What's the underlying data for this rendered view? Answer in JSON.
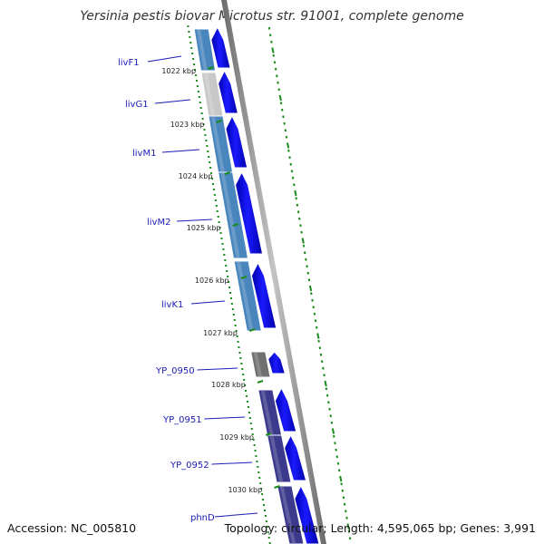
{
  "title": "Yersinia pestis biovar Microtus str. 91001, complete genome",
  "footer": {
    "accession": "Accession: NC_005810",
    "stats": "Topology: circular; Length: 4,595,065 bp; Genes: 3,991"
  },
  "colors": {
    "cds_forward": "#0000ee",
    "backbone": "#8a8a8a",
    "gc_dots": "#1a8a1a",
    "tick_marks": "#1a8a1a",
    "gene_label": "#1a1ab8"
  },
  "scale": {
    "unit": "kbp",
    "ticks": [
      "1022 kbp",
      "1023 kbp",
      "1024 kbp",
      "1025 kbp",
      "1026 kbp",
      "1027 kbp",
      "1028 kbp",
      "1029 kbp",
      "1030 kbp"
    ]
  },
  "genes": [
    {
      "label": "livF1",
      "color": "#4a86be"
    },
    {
      "label": "livG1",
      "color": "#c8c8c8"
    },
    {
      "label": "livM1",
      "color": "#4a86be"
    },
    {
      "label": "livM2",
      "color": "#4a86be"
    },
    {
      "label": "livK1",
      "color": "#4a86be"
    },
    {
      "label": "YP_0950",
      "color": "#707070"
    },
    {
      "label": "YP_0951",
      "color": "#3c3a8c"
    },
    {
      "label": "YP_0952",
      "color": "#3c3a8c"
    },
    {
      "label": "phnD",
      "color": "#3c3a8c"
    }
  ]
}
